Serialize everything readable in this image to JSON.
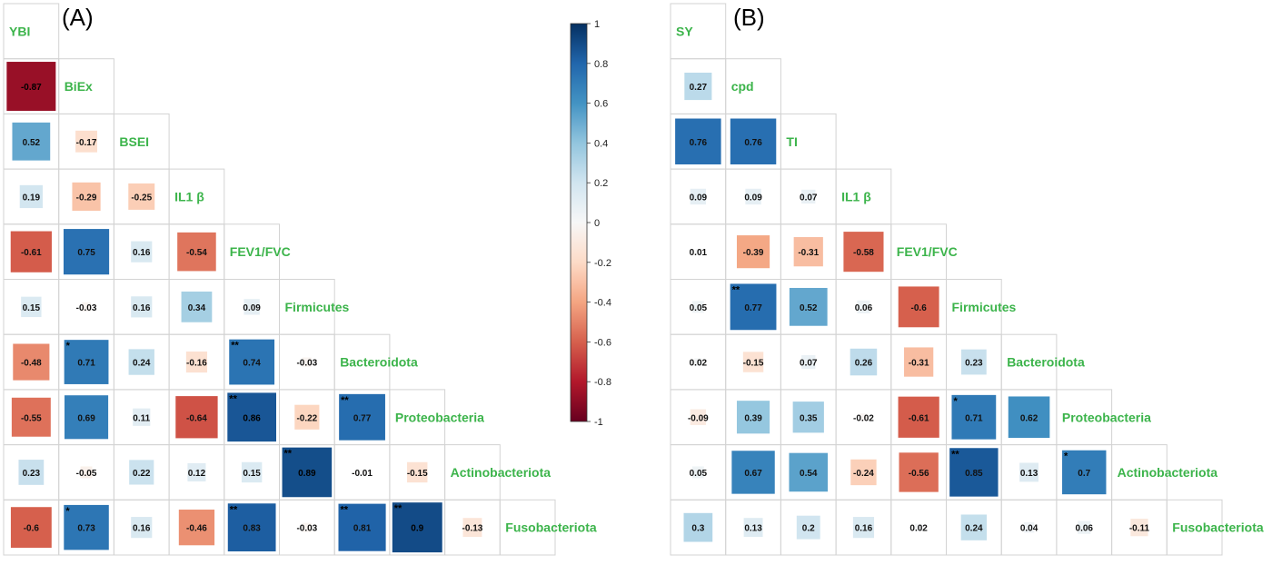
{
  "panels": [
    {
      "label": "(A)",
      "variables": [
        "YBI",
        "BiEx",
        "BSEI",
        "IL1 β",
        "FEV1/FVC",
        "Firmicutes",
        "Bacteroidota",
        "Proteobacteria",
        "Actinobacteriota",
        "Fusobacteriota"
      ]
    },
    {
      "label": "(B)",
      "variables": [
        "SY",
        "cpd",
        "TI",
        "IL1 β",
        "FEV1/FVC",
        "Firmicutes",
        "Bacteroidota",
        "Proteobacteria",
        "Actinobacteriota",
        "Fusobacteriota"
      ]
    }
  ],
  "colorbar": {
    "ticks": [
      "1",
      "0.8",
      "0.6",
      "0.4",
      "0.2",
      "0",
      "-0.2",
      "-0.4",
      "-0.6",
      "-0.8",
      "-1"
    ],
    "range": [
      -1,
      1
    ]
  },
  "colors": {
    "positive": "#0b3f7f",
    "negative": "#7f0a1f",
    "label_green": "#3cb44b",
    "grid": "#d3d3d3"
  },
  "chart_data": [
    {
      "type": "heatmap",
      "title": "(A)",
      "variables": [
        "YBI",
        "BiEx",
        "BSEI",
        "IL1 β",
        "FEV1/FVC",
        "Firmicutes",
        "Bacteroidota",
        "Proteobacteria",
        "Actinobacteriota",
        "Fusobacteriota"
      ],
      "lower_triangle": [
        [],
        [
          -0.87
        ],
        [
          0.52,
          -0.17
        ],
        [
          0.19,
          -0.29,
          -0.25
        ],
        [
          -0.61,
          0.75,
          0.16,
          -0.54
        ],
        [
          0.15,
          -0.03,
          0.16,
          0.34,
          0.09
        ],
        [
          -0.48,
          0.71,
          0.24,
          -0.16,
          0.74,
          -0.03
        ],
        [
          -0.55,
          0.69,
          0.11,
          -0.64,
          0.86,
          -0.22,
          0.77
        ],
        [
          0.23,
          -0.05,
          0.22,
          0.12,
          0.15,
          0.89,
          -0.01,
          -0.15
        ],
        [
          -0.6,
          0.73,
          0.16,
          -0.46,
          0.83,
          -0.03,
          0.81,
          0.9,
          -0.13
        ]
      ],
      "significance": [
        [],
        [
          ""
        ],
        [
          "",
          ""
        ],
        [
          "",
          "",
          ""
        ],
        [
          "",
          "",
          "",
          ""
        ],
        [
          "",
          "",
          "",
          "",
          ""
        ],
        [
          "",
          "*",
          "",
          "",
          "**",
          ""
        ],
        [
          "",
          "",
          "",
          "",
          "**",
          "",
          "**"
        ],
        [
          "",
          "",
          "",
          "",
          "",
          "**",
          "",
          ""
        ],
        [
          "",
          "*",
          "",
          "",
          "**",
          "",
          "**",
          "**",
          ""
        ]
      ],
      "colorbar_range": [
        -1,
        1
      ]
    },
    {
      "type": "heatmap",
      "title": "(B)",
      "variables": [
        "SY",
        "cpd",
        "TI",
        "IL1 β",
        "FEV1/FVC",
        "Firmicutes",
        "Bacteroidota",
        "Proteobacteria",
        "Actinobacteriota",
        "Fusobacteriota"
      ],
      "lower_triangle": [
        [],
        [
          0.27
        ],
        [
          0.76,
          0.76
        ],
        [
          0.09,
          0.09,
          0.07
        ],
        [
          0.01,
          -0.39,
          -0.31,
          -0.58
        ],
        [
          0.05,
          0.77,
          0.52,
          0.06,
          -0.6
        ],
        [
          0.02,
          -0.15,
          0.07,
          0.26,
          -0.31,
          0.23
        ],
        [
          -0.09,
          0.39,
          0.35,
          -0.02,
          -0.61,
          0.71,
          0.62
        ],
        [
          0.05,
          0.67,
          0.54,
          -0.24,
          -0.56,
          0.85,
          0.13,
          0.7
        ],
        [
          0.3,
          0.13,
          0.2,
          0.16,
          0.02,
          0.24,
          0.04,
          0.06,
          -0.11
        ]
      ],
      "significance": [
        [],
        [
          ""
        ],
        [
          "",
          ""
        ],
        [
          "",
          "",
          ""
        ],
        [
          "",
          "",
          "",
          ""
        ],
        [
          "",
          "**",
          "",
          "",
          ""
        ],
        [
          "",
          "",
          "",
          "",
          "",
          ""
        ],
        [
          "",
          "",
          "",
          "",
          "",
          "*",
          ""
        ],
        [
          "",
          "",
          "",
          "",
          "",
          "**",
          "",
          "*"
        ],
        [
          "",
          "",
          "",
          "",
          "",
          "",
          "",
          "",
          ""
        ]
      ]
    }
  ]
}
